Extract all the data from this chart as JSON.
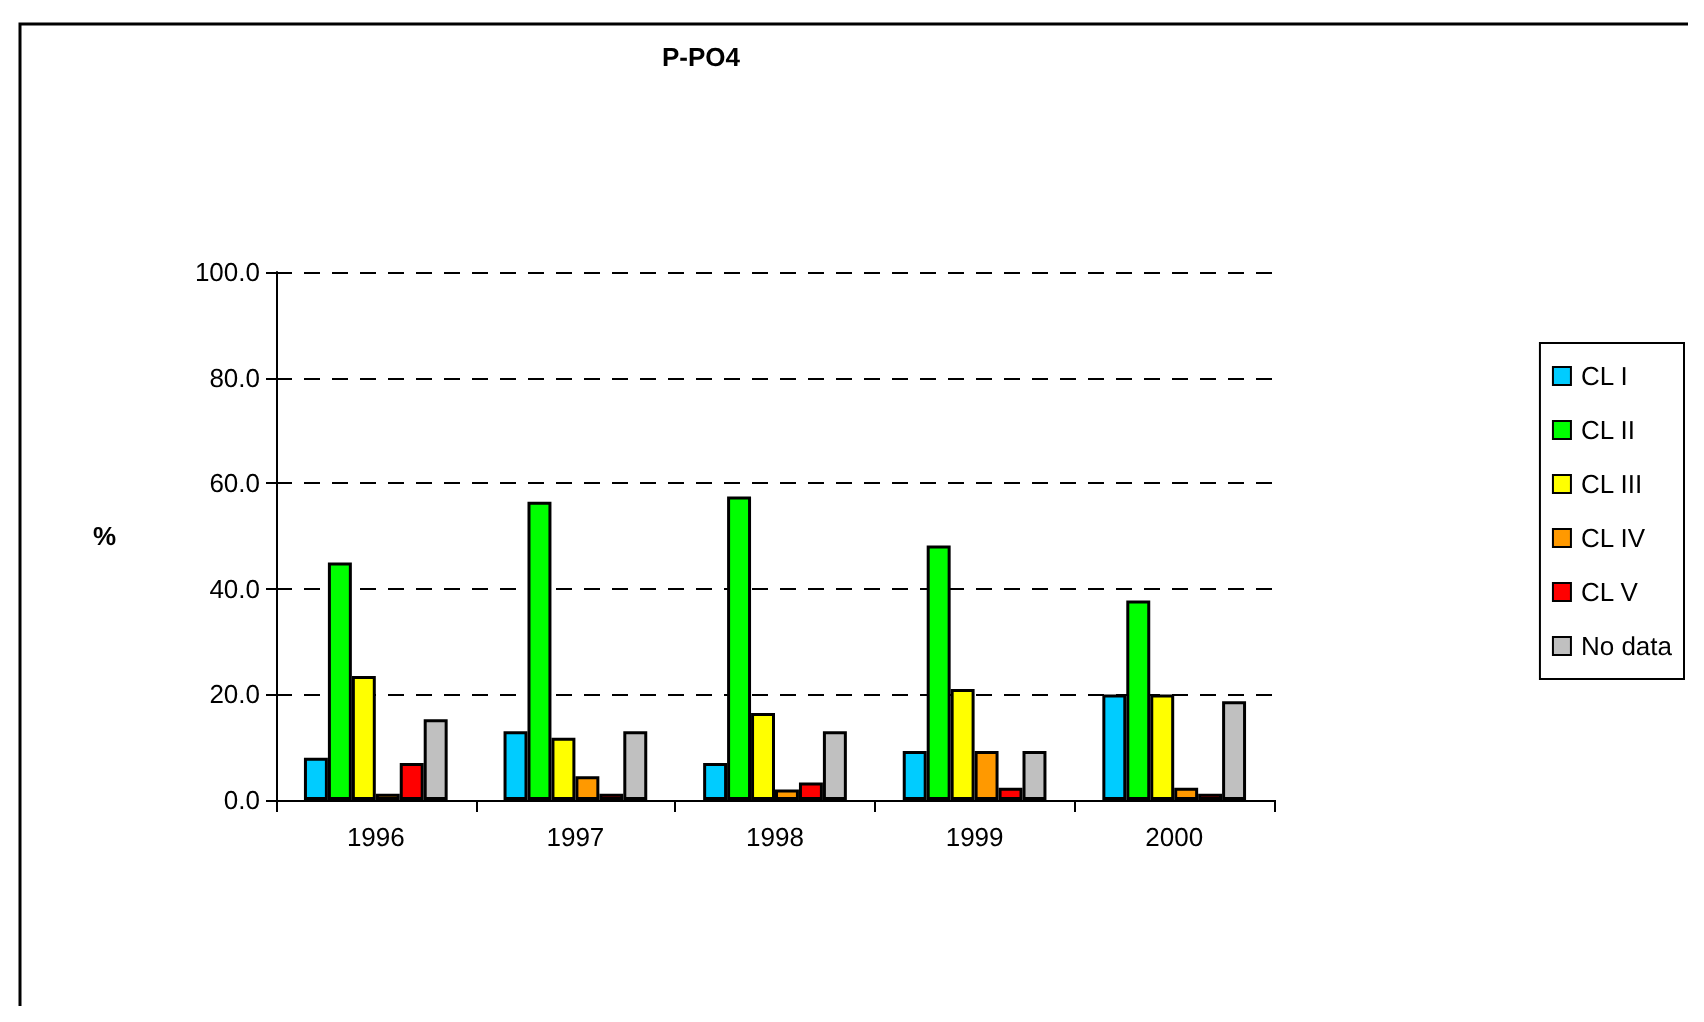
{
  "chart_data": {
    "type": "bar",
    "title": "P-PO4",
    "ylabel": "%",
    "categories": [
      "1996",
      "1997",
      "1998",
      "1999",
      "2000"
    ],
    "series": [
      {
        "name": "CL I",
        "color": "#00ccff",
        "values": [
          8,
          13,
          7,
          9.3,
          20
        ]
      },
      {
        "name": "CL II",
        "color": "#00ff00",
        "values": [
          45,
          56.5,
          57.5,
          48.2,
          37.8
        ]
      },
      {
        "name": "CL III",
        "color": "#ffff00",
        "values": [
          23.5,
          11.8,
          16.5,
          21,
          20
        ]
      },
      {
        "name": "CL IV",
        "color": "#ff9900",
        "values": [
          1.2,
          4.5,
          2,
          9.3,
          2.3
        ]
      },
      {
        "name": "CL V",
        "color": "#ff0000",
        "values": [
          7,
          1.2,
          3.3,
          2.3,
          1.2
        ]
      },
      {
        "name": "No data",
        "color": "#c0c0c0",
        "values": [
          15.3,
          13,
          13,
          9.3,
          18.7
        ]
      }
    ],
    "ylim": [
      0,
      100
    ],
    "yticks": [
      {
        "value": 0,
        "label": "0.0"
      },
      {
        "value": 20,
        "label": "20.0"
      },
      {
        "value": 40,
        "label": "40.0"
      },
      {
        "value": 60,
        "label": "60.0"
      },
      {
        "value": 80,
        "label": "80.0"
      },
      {
        "value": 100,
        "label": "100.0"
      }
    ],
    "grid": "y",
    "legend": "right",
    "line_style": "dashed"
  }
}
